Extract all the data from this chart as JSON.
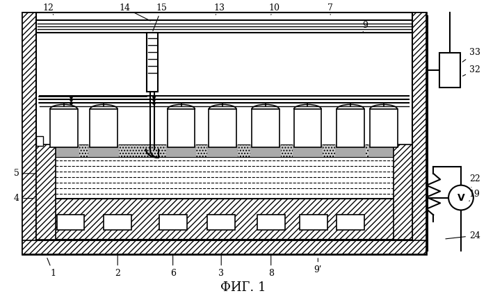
{
  "title": "ФИГ. 1",
  "bg_color": "#ffffff",
  "line_color": "#000000",
  "fig_width": 6.99,
  "fig_height": 4.29,
  "dpi": 100
}
